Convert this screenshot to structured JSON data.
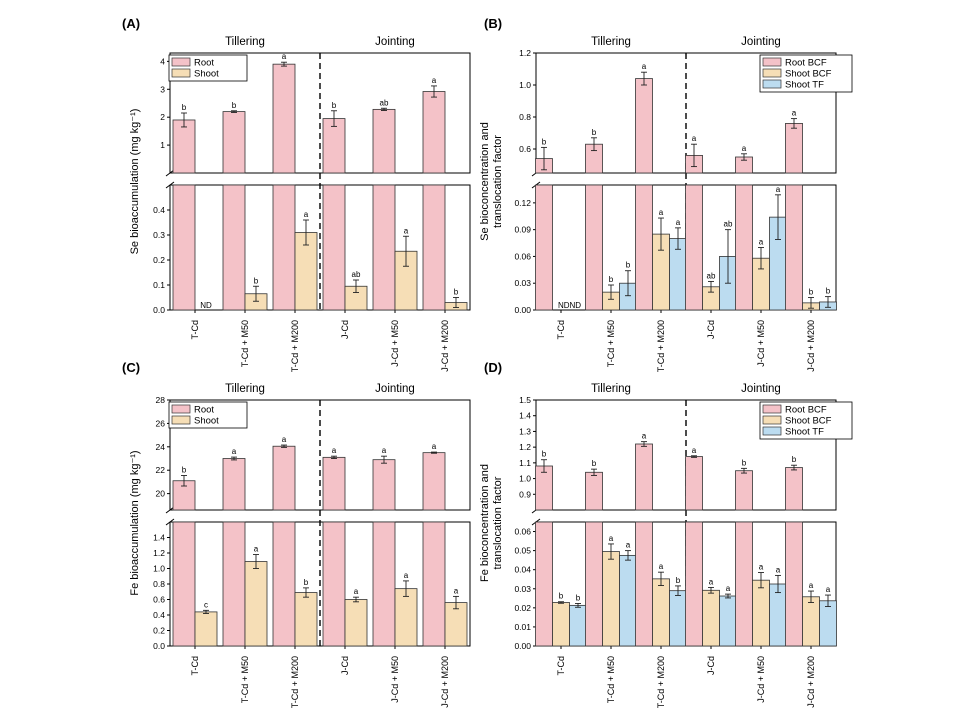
{
  "colors": {
    "root": "#f4c2c8",
    "shoot": "#f6deb6",
    "tf": "#bcdcf0",
    "outline": "#333333"
  },
  "chart_data": [
    {
      "panel": "(A)",
      "type": "bar",
      "ylabel": "Se bioaccumulation (mg kg⁻¹)",
      "stage_labels": [
        "Tillering",
        "Jointing"
      ],
      "categories": [
        "T-Cd",
        "T-Cd + M50",
        "T-Cd + M200",
        "J-Cd",
        "J-Cd + M50",
        "J-Cd + M200"
      ],
      "legend_position": "top-left",
      "axis_break": {
        "lower": [
          0,
          0.5
        ],
        "upper": [
          0,
          4.3
        ]
      },
      "lower_ticks": [
        "0.0",
        "0.1",
        "0.2",
        "0.3",
        "0.4"
      ],
      "upper_ticks": [
        "1",
        "2",
        "3",
        "4"
      ],
      "series": [
        {
          "name": "Root",
          "color_key": "root",
          "values": [
            1.9,
            2.2,
            3.9,
            1.95,
            2.28,
            2.92
          ],
          "errors": [
            0.25,
            0.03,
            0.07,
            0.28,
            0.04,
            0.2
          ],
          "letters": [
            "b",
            "b",
            "a",
            "b",
            "ab",
            "a"
          ]
        },
        {
          "name": "Shoot",
          "color_key": "shoot",
          "values": [
            null,
            0.065,
            0.31,
            0.095,
            0.235,
            0.03
          ],
          "errors": [
            0,
            0.03,
            0.05,
            0.025,
            0.06,
            0.02
          ],
          "letters": [
            "",
            "b",
            "a",
            "ab",
            "a",
            "b"
          ]
        }
      ],
      "annotations": [
        {
          "category_index": 0,
          "series_index": 1,
          "text": "ND"
        }
      ]
    },
    {
      "panel": "(B)",
      "type": "bar",
      "ylabel": [
        "Se bioconcentration and",
        "translocation factor"
      ],
      "stage_labels": [
        "Tillering",
        "Jointing"
      ],
      "categories": [
        "T-Cd",
        "T-Cd + M50",
        "T-Cd + M200",
        "J-Cd",
        "J-Cd + M50",
        "J-Cd + M200"
      ],
      "legend_position": "top-right",
      "axis_break": {
        "lower": [
          0,
          0.14
        ],
        "upper": [
          0.45,
          1.2
        ]
      },
      "lower_ticks": [
        "0.00",
        "0.03",
        "0.06",
        "0.09",
        "0.12"
      ],
      "upper_ticks": [
        "0.6",
        "0.8",
        "1.0",
        "1.2"
      ],
      "series": [
        {
          "name": "Root BCF",
          "color_key": "root",
          "values": [
            0.54,
            0.63,
            1.04,
            0.56,
            0.55,
            0.76
          ],
          "errors": [
            0.07,
            0.04,
            0.04,
            0.07,
            0.02,
            0.03
          ],
          "letters": [
            "b",
            "b",
            "a",
            "a",
            "a",
            "a"
          ]
        },
        {
          "name": "Shoot BCF",
          "color_key": "shoot",
          "values": [
            null,
            0.02,
            0.085,
            0.026,
            0.058,
            0.008
          ],
          "errors": [
            0,
            0.008,
            0.018,
            0.006,
            0.012,
            0.006
          ],
          "letters": [
            "",
            "b",
            "a",
            "ab",
            "a",
            "b"
          ]
        },
        {
          "name": "Shoot TF",
          "color_key": "tf",
          "values": [
            null,
            0.03,
            0.08,
            0.06,
            0.104,
            0.009
          ],
          "errors": [
            0,
            0.014,
            0.012,
            0.03,
            0.025,
            0.006
          ],
          "letters": [
            "",
            "b",
            "a",
            "ab",
            "a",
            "b"
          ]
        }
      ],
      "annotations": [
        {
          "category_index": 0,
          "series_index": 1,
          "text": "NDND"
        }
      ]
    },
    {
      "panel": "(C)",
      "type": "bar",
      "ylabel": "Fe bioaccumulation (mg kg⁻¹)",
      "stage_labels": [
        "Tillering",
        "Jointing"
      ],
      "categories": [
        "T-Cd",
        "T-Cd + M50",
        "T-Cd + M200",
        "J-Cd",
        "J-Cd + M50",
        "J-Cd + M200"
      ],
      "legend_position": "top-left",
      "axis_break": {
        "lower": [
          0,
          1.6
        ],
        "upper": [
          18.6,
          28
        ]
      },
      "lower_ticks": [
        "0.0",
        "0.2",
        "0.4",
        "0.6",
        "0.8",
        "1.0",
        "1.2",
        "1.4"
      ],
      "upper_ticks": [
        "20",
        "22",
        "24",
        "26",
        "28"
      ],
      "series": [
        {
          "name": "Root",
          "color_key": "root",
          "values": [
            21.1,
            23.0,
            24.05,
            23.1,
            22.9,
            23.5
          ],
          "errors": [
            0.45,
            0.12,
            0.1,
            0.1,
            0.3,
            0.05
          ],
          "letters": [
            "b",
            "a",
            "a",
            "a",
            "a",
            "a"
          ]
        },
        {
          "name": "Shoot",
          "color_key": "shoot",
          "values": [
            0.44,
            1.09,
            0.69,
            0.6,
            0.74,
            0.56
          ],
          "errors": [
            0.02,
            0.09,
            0.06,
            0.03,
            0.1,
            0.08
          ],
          "letters": [
            "c",
            "a",
            "b",
            "a",
            "a",
            "a"
          ]
        }
      ],
      "annotations": []
    },
    {
      "panel": "(D)",
      "type": "bar",
      "ylabel": [
        "Fe bioconcentration and",
        "translocation factor"
      ],
      "stage_labels": [
        "Tillering",
        "Jointing"
      ],
      "categories": [
        "T-Cd",
        "T-Cd + M50",
        "T-Cd + M200",
        "J-Cd",
        "J-Cd + M50",
        "J-Cd + M200"
      ],
      "legend_position": "top-right",
      "axis_break": {
        "lower": [
          0,
          0.065
        ],
        "upper": [
          0.8,
          1.5
        ]
      },
      "lower_ticks": [
        "0.00",
        "0.01",
        "0.02",
        "0.03",
        "0.04",
        "0.05",
        "0.06"
      ],
      "upper_ticks": [
        "0.9",
        "1.0",
        "1.1",
        "1.2",
        "1.3",
        "1.4",
        "1.5"
      ],
      "series": [
        {
          "name": "Root BCF",
          "color_key": "root",
          "values": [
            1.08,
            1.04,
            1.22,
            1.14,
            1.05,
            1.07
          ],
          "errors": [
            0.04,
            0.02,
            0.015,
            0.005,
            0.015,
            0.015
          ],
          "letters": [
            "b",
            "b",
            "a",
            "a",
            "b",
            "b"
          ]
        },
        {
          "name": "Shoot BCF",
          "color_key": "shoot",
          "values": [
            0.0228,
            0.0495,
            0.0352,
            0.0292,
            0.0345,
            0.0258
          ],
          "errors": [
            0.0004,
            0.004,
            0.0035,
            0.0015,
            0.004,
            0.003
          ],
          "letters": [
            "b",
            "a",
            "a",
            "a",
            "a",
            "a"
          ]
        },
        {
          "name": "Shoot TF",
          "color_key": "tf",
          "values": [
            0.0213,
            0.0475,
            0.029,
            0.0262,
            0.0325,
            0.0237
          ],
          "errors": [
            0.001,
            0.0025,
            0.0025,
            0.001,
            0.0045,
            0.003
          ],
          "letters": [
            "b",
            "a",
            "b",
            "a",
            "a",
            "a"
          ]
        }
      ],
      "annotations": []
    }
  ]
}
